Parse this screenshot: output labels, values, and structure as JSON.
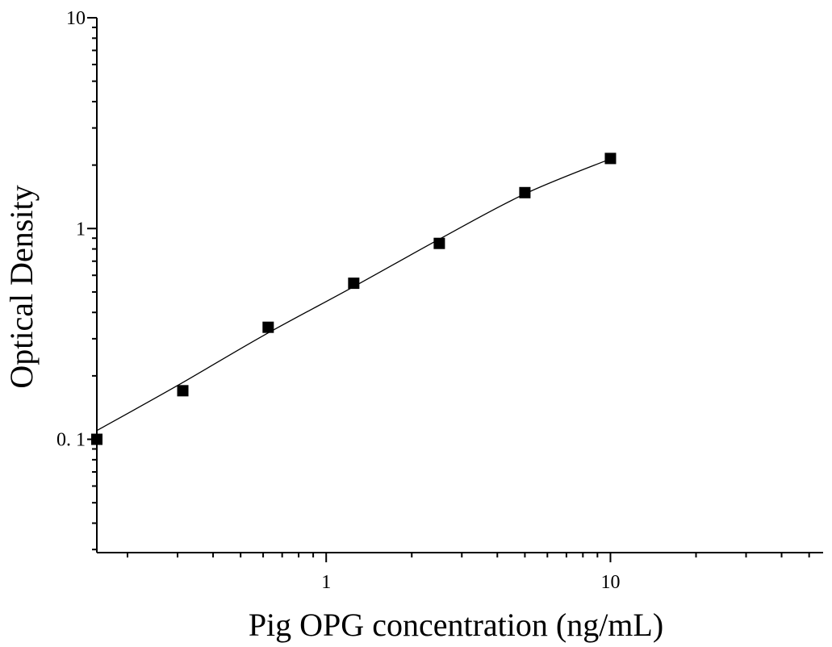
{
  "chart_data": {
    "type": "scatter",
    "title": "",
    "xlabel": "Pig OPG concentration (ng/mL)",
    "ylabel": "Optical Density",
    "xscale": "log",
    "yscale": "log",
    "xlim": [
      0.156,
      56
    ],
    "ylim": [
      0.029,
      10
    ],
    "x_tick_labels": [
      {
        "value": 1,
        "label": "1"
      },
      {
        "value": 10,
        "label": "10"
      }
    ],
    "y_tick_labels": [
      {
        "value": 10,
        "label": "10"
      },
      {
        "value": 1,
        "label": "1"
      },
      {
        "value": 0.1,
        "label": "0. 1"
      }
    ],
    "grid": false,
    "legend": "none",
    "marker": "square",
    "color": "#000000",
    "series": [
      {
        "x": [
          0.156,
          0.313,
          0.625,
          1.25,
          2.5,
          5,
          10
        ],
        "y": [
          0.1,
          0.17,
          0.34,
          0.55,
          0.85,
          1.48,
          2.15
        ]
      }
    ],
    "fit_curve": {
      "x": [
        0.156,
        0.3,
        0.6,
        1.25,
        2.5,
        5,
        10
      ],
      "y": [
        0.11,
        0.18,
        0.31,
        0.53,
        0.89,
        1.46,
        2.14
      ]
    }
  }
}
